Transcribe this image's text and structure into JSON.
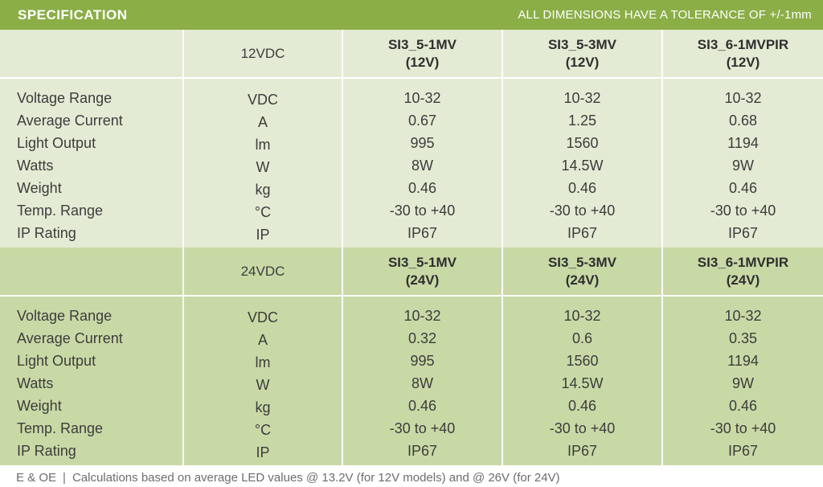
{
  "header": {
    "title": "SPECIFICATION",
    "tolerance": "ALL DIMENSIONS HAVE A TOLERANCE OF +/-1mm"
  },
  "colors": {
    "header_green": "#8bae47",
    "light_section": "#e4ebd4",
    "dark_section": "#c9d9a6",
    "divider": "#ffffff"
  },
  "sections": [
    {
      "voltage": "12VDC",
      "models": [
        {
          "name": "SI3_5-1MV",
          "variant": "(12V)"
        },
        {
          "name": "SI3_5-3MV",
          "variant": "(12V)"
        },
        {
          "name": "SI3_6-1MVPIR",
          "variant": "(12V)"
        }
      ],
      "rows": [
        {
          "param": "Voltage Range",
          "unit": "VDC",
          "values": [
            "10-32",
            "10-32",
            "10-32"
          ]
        },
        {
          "param": "Average Current",
          "unit": "A",
          "values": [
            "0.67",
            "1.25",
            "0.68"
          ]
        },
        {
          "param": "Light Output",
          "unit": "lm",
          "values": [
            "995",
            "1560",
            "1194"
          ]
        },
        {
          "param": "Watts",
          "unit": "W",
          "values": [
            "8W",
            "14.5W",
            "9W"
          ]
        },
        {
          "param": "Weight",
          "unit": "kg",
          "values": [
            "0.46",
            "0.46",
            "0.46"
          ]
        },
        {
          "param": "Temp. Range",
          "unit": "°C",
          "values": [
            "-30 to +40",
            "-30 to +40",
            "-30 to +40"
          ]
        },
        {
          "param": "IP Rating",
          "unit": "IP",
          "values": [
            "IP67",
            "IP67",
            "IP67"
          ]
        }
      ]
    },
    {
      "voltage": "24VDC",
      "models": [
        {
          "name": "SI3_5-1MV",
          "variant": "(24V)"
        },
        {
          "name": "SI3_5-3MV",
          "variant": "(24V)"
        },
        {
          "name": "SI3_6-1MVPIR",
          "variant": "(24V)"
        }
      ],
      "rows": [
        {
          "param": "Voltage Range",
          "unit": "VDC",
          "values": [
            "10-32",
            "10-32",
            "10-32"
          ]
        },
        {
          "param": "Average Current",
          "unit": "A",
          "values": [
            "0.32",
            "0.6",
            "0.35"
          ]
        },
        {
          "param": "Light Output",
          "unit": "lm",
          "values": [
            "995",
            "1560",
            "1194"
          ]
        },
        {
          "param": "Watts",
          "unit": "W",
          "values": [
            "8W",
            "14.5W",
            "9W"
          ]
        },
        {
          "param": "Weight",
          "unit": "kg",
          "values": [
            "0.46",
            "0.46",
            "0.46"
          ]
        },
        {
          "param": "Temp. Range",
          "unit": "°C",
          "values": [
            "-30 to +40",
            "-30 to +40",
            "-30 to +40"
          ]
        },
        {
          "param": "IP Rating",
          "unit": "IP",
          "values": [
            "IP67",
            "IP67",
            "IP67"
          ]
        }
      ]
    }
  ],
  "footer": {
    "eoe": "E & OE",
    "separator": "|",
    "note": "Calculations based on average LED values @ 13.2V (for 12V models) and @ 26V (for 24V)"
  }
}
